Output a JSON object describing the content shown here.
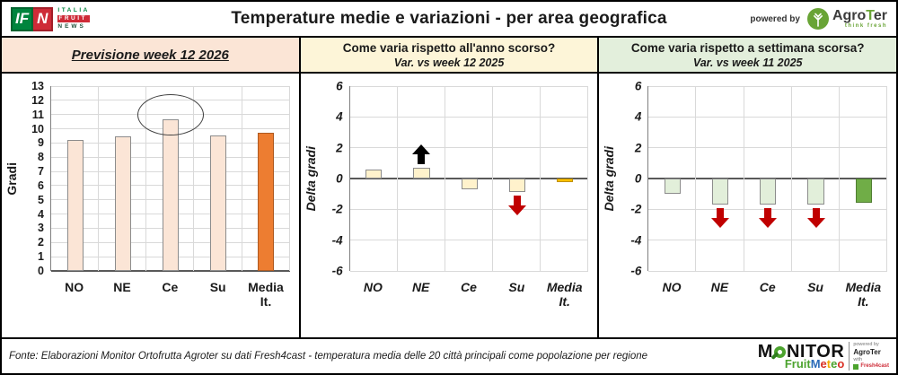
{
  "header": {
    "title": "Temperature medie e variazioni - per area geografica",
    "powered_by_label": "powered by",
    "agroter": {
      "agro": "Agro",
      "t": "T",
      "er": "er",
      "tagline": "think fresh"
    },
    "ifn": {
      "left_letters": "IF",
      "right_letter": "N",
      "line1": "ITALIA",
      "line2": "FRUIT",
      "line3": "NEWS"
    }
  },
  "panels": [
    {
      "title": "Previsione week 12 2026",
      "bg": "#FBE5D6"
    },
    {
      "title": "Come varia rispetto all'anno scorso?",
      "subtitle": "Var. vs week 12 2025",
      "bg": "#FDF5D8"
    },
    {
      "title": "Come varia rispetto a settimana scorsa?",
      "subtitle": "Var. vs week 11 2025",
      "bg": "#E3EFDC"
    }
  ],
  "chart_data": [
    {
      "type": "bar",
      "title": "Previsione week 12 2026",
      "ylabel": "Gradi",
      "categories": [
        "NO",
        "NE",
        "Ce",
        "Su",
        "Media It."
      ],
      "values": [
        9.2,
        9.45,
        10.65,
        9.55,
        9.75
      ],
      "ylim": [
        0,
        13
      ],
      "ytick_step": 1,
      "grid": true,
      "legend": "none",
      "bar_fill": "#FBE5D6",
      "bar_border": "#8C8C8C",
      "highlight_category": "Media It.",
      "highlight_fill": "#ED7D31",
      "highlight_border": "#AE5A21",
      "annotations": [
        {
          "type": "ellipse",
          "category": "Ce",
          "color": "#404040"
        }
      ]
    },
    {
      "type": "bar",
      "title": "Var. vs week 12 2025",
      "ylabel": "Delta gradi",
      "categories": [
        "NO",
        "NE",
        "Ce",
        "Su",
        "Media It."
      ],
      "values": [
        0.6,
        0.7,
        -0.7,
        -0.9,
        -0.25
      ],
      "ylim": [
        -6,
        6
      ],
      "ytick_step": 2,
      "grid": true,
      "legend": "none",
      "bar_fill": "#FFF2CC",
      "bar_border": "#8C8C8C",
      "highlight_category": "Media It.",
      "highlight_fill": "#FFC000",
      "highlight_border": "#BF9000",
      "annotations": [
        {
          "type": "arrow-up",
          "category": "NE",
          "color": "#000000"
        },
        {
          "type": "arrow-down",
          "category": "Su",
          "color": "#C00000"
        }
      ]
    },
    {
      "type": "bar",
      "title": "Var. vs week 11 2025",
      "ylabel": "Delta gradi",
      "categories": [
        "NO",
        "NE",
        "Ce",
        "Su",
        "Media It."
      ],
      "values": [
        -1.0,
        -1.7,
        -1.7,
        -1.7,
        -1.6
      ],
      "ylim": [
        -6,
        6
      ],
      "ytick_step": 2,
      "grid": true,
      "legend": "none",
      "bar_fill": "#E2EFDA",
      "bar_border": "#8C8C8C",
      "highlight_category": "Media It.",
      "highlight_fill": "#70AD47",
      "highlight_border": "#507E32",
      "annotations": [
        {
          "type": "arrow-down",
          "category": "NE",
          "color": "#C00000"
        },
        {
          "type": "arrow-down",
          "category": "Ce",
          "color": "#C00000"
        },
        {
          "type": "arrow-down",
          "category": "Su",
          "color": "#C00000"
        }
      ]
    }
  ],
  "footer": {
    "source": "Fonte: Elaborazioni Monitor Ortofrutta Agroter su dati Fresh4cast - temperatura media delle 20 città principali come popolazione per regione",
    "monitor_m": "M",
    "monitor_rest": "NITOR",
    "fruit": "Fruit",
    "meteo_letters": [
      "M",
      "e",
      "t",
      "e",
      "o"
    ],
    "meteo_colors": [
      "#2B6CB8",
      "#D93025",
      "#F2A900",
      "#4CA32E",
      "#D93025"
    ],
    "powered": {
      "line1": "powered by",
      "line2": "AgroTer",
      "line3": "with",
      "line4": "Fresh4cast"
    }
  }
}
